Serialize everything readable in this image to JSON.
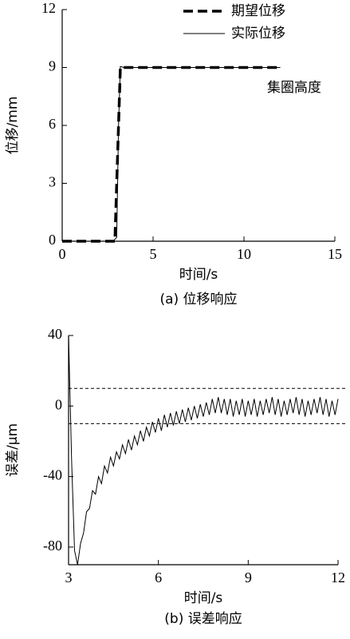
{
  "chart_data": [
    {
      "type": "line",
      "caption": "(a) 位移响应",
      "xlabel": "时间/s",
      "ylabel": "位移/mm",
      "xlim": [
        0,
        15
      ],
      "xticks": [
        0,
        5,
        10,
        15
      ],
      "ylim": [
        0,
        12
      ],
      "yticks": [
        0,
        3,
        6,
        9,
        12
      ],
      "legend": "upper right",
      "annotation": "集圈高度",
      "series": [
        {
          "name": "期望位移",
          "color": "#000000",
          "line_style": "dashed",
          "line_width": 3.5,
          "x": [
            0,
            2.9,
            3.2,
            12
          ],
          "values": [
            0,
            0,
            9,
            9
          ]
        },
        {
          "name": "实际位移",
          "color": "#000000",
          "line_style": "solid",
          "line_width": 1,
          "x": [
            0,
            2.8,
            3.0,
            3.1,
            3.2,
            3.4,
            12
          ],
          "values": [
            0,
            0,
            0.2,
            6,
            9.05,
            9.0,
            9.0
          ]
        }
      ]
    },
    {
      "type": "line",
      "caption": "(b) 误差响应",
      "xlabel": "时间/s",
      "ylabel": "误差/μm",
      "xlim": [
        3,
        12
      ],
      "xticks": [
        3,
        6,
        9,
        12
      ],
      "ylim": [
        -90,
        40
      ],
      "yticks": [
        -80,
        -40,
        0,
        40
      ],
      "reference_lines": [
        10,
        -10
      ],
      "series": [
        {
          "color": "#000000",
          "line_style": "solid",
          "line_width": 1,
          "x": [
            3.0,
            3.1,
            3.2,
            3.3,
            3.4,
            3.5,
            3.6,
            3.7,
            3.8,
            3.9,
            4.0,
            4.1,
            4.2,
            4.3,
            4.4,
            4.5,
            4.6,
            4.7,
            4.8,
            4.9,
            5.0,
            5.1,
            5.2,
            5.3,
            5.4,
            5.5,
            5.6,
            5.7,
            5.8,
            5.9,
            6.0,
            6.1,
            6.2,
            6.3,
            6.4,
            6.5,
            6.6,
            6.7,
            6.8,
            6.9,
            7.0,
            7.1,
            7.2,
            7.3,
            7.4,
            7.5,
            7.6,
            7.7,
            7.8,
            7.9,
            8.0,
            8.1,
            8.2,
            8.3,
            8.4,
            8.5,
            8.6,
            8.7,
            8.8,
            8.9,
            9.0,
            9.1,
            9.2,
            9.3,
            9.4,
            9.5,
            9.6,
            9.7,
            9.8,
            9.9,
            10.0,
            10.1,
            10.2,
            10.3,
            10.4,
            10.5,
            10.6,
            10.7,
            10.8,
            10.9,
            11.0,
            11.1,
            11.2,
            11.3,
            11.4,
            11.5,
            11.6,
            11.7,
            11.8,
            11.9,
            12.0
          ],
          "values": [
            40,
            -30,
            -82,
            -90,
            -78,
            -72,
            -60,
            -58,
            -48,
            -50,
            -40,
            -44,
            -34,
            -38,
            -29,
            -34,
            -26,
            -30,
            -22,
            -27,
            -19,
            -25,
            -17,
            -22,
            -14,
            -20,
            -12,
            -17,
            -9,
            -15,
            -7,
            -14,
            -5,
            -12,
            -4,
            -11,
            -3,
            -10,
            -2,
            -9,
            -1,
            -8,
            0,
            -7,
            1,
            -6,
            2,
            -5,
            4,
            -4,
            5,
            -4,
            4,
            -5,
            4,
            -6,
            3,
            -5,
            4,
            -6,
            3,
            -5,
            4,
            -6,
            3,
            -5,
            4,
            -4,
            5,
            -5,
            4,
            -6,
            3,
            -5,
            4,
            -4,
            5,
            -5,
            4,
            -6,
            3,
            -5,
            4,
            -4,
            5,
            -5,
            4,
            -6,
            3,
            -5,
            4
          ]
        }
      ]
    }
  ]
}
